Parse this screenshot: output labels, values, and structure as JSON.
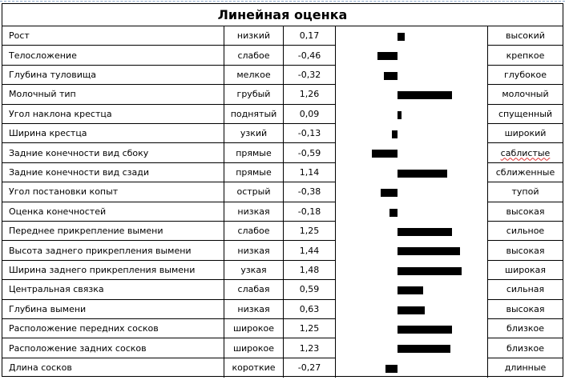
{
  "title": "Линейная оценка",
  "chart_data": {
    "type": "bar",
    "orientation": "horizontal",
    "title": "Линейная оценка",
    "zero_axis": 0,
    "categories": [
      "Рост",
      "Телосложение",
      "Глубина туловища",
      "Молочный тип",
      "Угол наклона крестца",
      "Ширина крестца",
      "Задние конечности вид сбоку",
      "Задние конечности вид сзади",
      "Угол постановки копыт",
      "Оценка конечностей",
      "Переднее прикрепление вымени",
      "Высота заднего прикрепления вымени",
      "Ширина заднего прикрепления вымени",
      "Центральная связка",
      "Глубина вымени",
      "Расположение передних сосков",
      "Расположение задних сосков",
      "Длина сосков"
    ],
    "values": [
      0.17,
      -0.46,
      -0.32,
      1.26,
      0.09,
      -0.13,
      -0.59,
      1.14,
      -0.38,
      -0.18,
      1.25,
      1.44,
      1.48,
      0.59,
      0.63,
      1.25,
      1.23,
      -0.27
    ],
    "low_labels": [
      "низкий",
      "слабое",
      "мелкое",
      "грубый",
      "поднятый",
      "узкий",
      "прямые",
      "прямые",
      "острый",
      "низкая",
      "слабое",
      "низкая",
      "узкая",
      "слабая",
      "низкая",
      "широкое",
      "широкое",
      "короткие"
    ],
    "high_labels": [
      "высокий",
      "крепкое",
      "глубокое",
      "молочный",
      "спущенный",
      "широкий",
      "саблистые",
      "сближенные",
      "тупой",
      "высокая",
      "сильное",
      "высокая",
      "широкая",
      "сильная",
      "высокая",
      "близкое",
      "близкое",
      "длинные"
    ],
    "grid": false,
    "legend": "none"
  },
  "rows": [
    {
      "label": "Рост",
      "low": "низкий",
      "value": "0,17",
      "high": "высокий",
      "v": 0.17
    },
    {
      "label": "Телосложение",
      "low": "слабое",
      "value": "-0,46",
      "high": "крепкое",
      "v": -0.46
    },
    {
      "label": "Глубина туловища",
      "low": "мелкое",
      "value": "-0,32",
      "high": "глубокое",
      "v": -0.32
    },
    {
      "label": "Молочный тип",
      "low": "грубый",
      "value": "1,26",
      "high": "молочный",
      "v": 1.26
    },
    {
      "label": "Угол наклона крестца",
      "low": "поднятый",
      "value": "0,09",
      "high": "спущенный",
      "v": 0.09
    },
    {
      "label": "Ширина крестца",
      "low": "узкий",
      "value": "-0,13",
      "high": "широкий",
      "v": -0.13
    },
    {
      "label": "Задние конечности вид сбоку",
      "low": "прямые",
      "value": "-0,59",
      "high": "саблистые",
      "v": -0.59,
      "spell": true
    },
    {
      "label": "Задние конечности вид сзади",
      "low": "прямые",
      "value": "1,14",
      "high": "сближенные",
      "v": 1.14
    },
    {
      "label": "Угол постановки копыт",
      "low": "острый",
      "value": "-0,38",
      "high": "тупой",
      "v": -0.38
    },
    {
      "label": "Оценка конечностей",
      "low": "низкая",
      "value": "-0,18",
      "high": "высокая",
      "v": -0.18
    },
    {
      "label": "Переднее прикрепление вымени",
      "low": "слабое",
      "value": "1,25",
      "high": "сильное",
      "v": 1.25
    },
    {
      "label": "Высота заднего прикрепления вымени",
      "low": "низкая",
      "value": "1,44",
      "high": "высокая",
      "v": 1.44
    },
    {
      "label": "Ширина заднего прикрепления вымени",
      "low": "узкая",
      "value": "1,48",
      "high": "широкая",
      "v": 1.48
    },
    {
      "label": "Центральная связка",
      "low": "слабая",
      "value": "0,59",
      "high": "сильная",
      "v": 0.59
    },
    {
      "label": "Глубина вымени",
      "low": "низкая",
      "value": "0,63",
      "high": "высокая",
      "v": 0.63
    },
    {
      "label": "Расположение передних сосков",
      "low": "широкое",
      "value": "1,25",
      "high": "близкое",
      "v": 1.25
    },
    {
      "label": "Расположение задних сосков",
      "low": "широкое",
      "value": "1,23",
      "high": "близкое",
      "v": 1.23
    },
    {
      "label": "Длина сосков",
      "low": "короткие",
      "value": "-0,27",
      "high": "длинные",
      "v": -0.27
    }
  ],
  "colors": {
    "bar": "#000000",
    "border": "#000000",
    "selection": "#8aa6c8"
  }
}
